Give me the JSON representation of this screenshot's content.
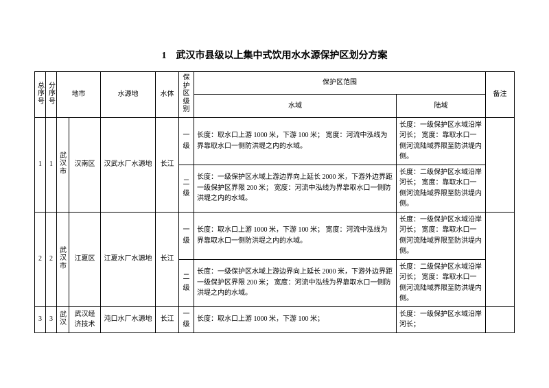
{
  "title": "1　武汉市县级以上集中式饮用水水源保护区划分方案",
  "headers": {
    "totalIdx": "总序号",
    "subIdx": "分序号",
    "city": "地市",
    "source": "水源地",
    "waterbody": "水体",
    "level": "保护区级别",
    "scope": "保护区范围",
    "water": "水域",
    "land": "陆域",
    "note": "备注"
  },
  "cityLabel": "武汉市",
  "cityLabelShort": "武汉",
  "rows": [
    {
      "idx": "1",
      "sub": "1",
      "district": "汉南区",
      "source": "汉武水厂水源地",
      "body": "长江",
      "lvl1": "一级",
      "water1": "长度：取水口上游 1000 米，下游 100 米；\n宽度：河流中泓线为界靠取水口一侧防洪堤之内的水域。",
      "land1": "长度：一级保护区水域沿岸河长；\n宽度：靠取水口一侧河流陆域界限至防洪堤内侧。",
      "lvl2": "二级",
      "water2": "长度：一级保护区水域上游边界向上延长 2000 米，下游外边界距一级保护区界限 200 米；\n宽度：河流中泓线为界靠取水口一侧防洪堤之内的水域。",
      "land2": "长度：二级保护区水域沿岸河长；\n宽度：靠取水口一侧河流陆域界限至防洪堤内侧。"
    },
    {
      "idx": "2",
      "sub": "2",
      "district": "江夏区",
      "source": "江夏水厂水源地",
      "body": "长江",
      "lvl1": "一级",
      "water1": "长度：取水口上游 1000 米，下游 100 米；\n宽度：河流中泓线为界靠取水口一侧防洪堤之内的水域。",
      "land1": "长度：一级保护区水域沿岸河长；\n宽度：靠取水口一侧河流陆域界限至防洪堤内侧。",
      "lvl2": "二级",
      "water2": "长度：一级保护区水域上游边界向上延长 2000 米，下游外边界距一级保护区界限 200 米；\n宽度：河流中泓线为界靠取水口一侧防洪堤之内的水域。",
      "land2": "长度：二级保护区水域沿岸河长；\n宽度：靠取水口一侧河流陆域界限至防洪堤内侧。"
    },
    {
      "idx": "3",
      "sub": "3",
      "district": "武汉经济技术",
      "source": "沌口水厂水源地",
      "body": "长江",
      "lvl1": "一级",
      "water1": "长度：取水口上游 1000 米，下游 100 米；",
      "land1": "长度：一级保护区水域沿岸河长；"
    }
  ]
}
